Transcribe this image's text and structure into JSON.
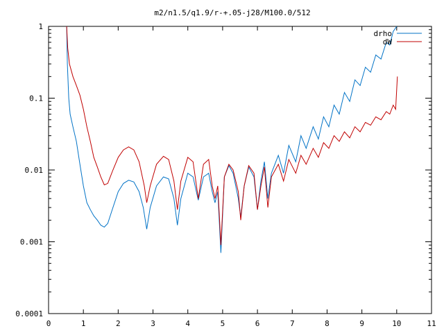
{
  "chart_data": {
    "type": "line",
    "title": "m2/n1.5/q1.9/r-+.05-j28/M100.0/512",
    "xlabel": "",
    "ylabel": "",
    "xlim": [
      0,
      11
    ],
    "ylim": [
      0.0001,
      1
    ],
    "yscale": "log",
    "grid": false,
    "legend_position": "top-right",
    "x_ticks": [
      {
        "v": 0,
        "label": "0"
      },
      {
        "v": 1,
        "label": "1"
      },
      {
        "v": 2,
        "label": "2"
      },
      {
        "v": 3,
        "label": "3"
      },
      {
        "v": 4,
        "label": "4"
      },
      {
        "v": 5,
        "label": "5"
      },
      {
        "v": 6,
        "label": "6"
      },
      {
        "v": 7,
        "label": "7"
      },
      {
        "v": 8,
        "label": "8"
      },
      {
        "v": 9,
        "label": "9"
      },
      {
        "v": 10,
        "label": "10"
      },
      {
        "v": 11,
        "label": "11"
      }
    ],
    "y_ticks": [
      {
        "v": 0.0001,
        "label": "0.0001"
      },
      {
        "v": 0.001,
        "label": "0.001"
      },
      {
        "v": 0.01,
        "label": "0.01"
      },
      {
        "v": 0.1,
        "label": "0.1"
      },
      {
        "v": 1,
        "label": "1"
      }
    ],
    "series": [
      {
        "name": "drho",
        "color": "#0072c6",
        "points": [
          [
            0.52,
            1.0
          ],
          [
            0.54,
            0.3
          ],
          [
            0.58,
            0.1
          ],
          [
            0.62,
            0.06
          ],
          [
            0.7,
            0.04
          ],
          [
            0.8,
            0.025
          ],
          [
            0.9,
            0.012
          ],
          [
            1.0,
            0.006
          ],
          [
            1.1,
            0.0035
          ],
          [
            1.2,
            0.0028
          ],
          [
            1.3,
            0.0023
          ],
          [
            1.4,
            0.002
          ],
          [
            1.5,
            0.0017
          ],
          [
            1.6,
            0.0016
          ],
          [
            1.7,
            0.0018
          ],
          [
            1.85,
            0.003
          ],
          [
            2.0,
            0.005
          ],
          [
            2.15,
            0.0065
          ],
          [
            2.3,
            0.0072
          ],
          [
            2.45,
            0.0068
          ],
          [
            2.6,
            0.005
          ],
          [
            2.72,
            0.003
          ],
          [
            2.82,
            0.0015
          ],
          [
            2.92,
            0.003
          ],
          [
            3.1,
            0.006
          ],
          [
            3.3,
            0.008
          ],
          [
            3.45,
            0.0075
          ],
          [
            3.6,
            0.004
          ],
          [
            3.7,
            0.0017
          ],
          [
            3.8,
            0.004
          ],
          [
            4.0,
            0.009
          ],
          [
            4.15,
            0.008
          ],
          [
            4.3,
            0.0038
          ],
          [
            4.45,
            0.008
          ],
          [
            4.6,
            0.009
          ],
          [
            4.7,
            0.005
          ],
          [
            4.78,
            0.0035
          ],
          [
            4.86,
            0.005
          ],
          [
            4.95,
            0.0007
          ],
          [
            5.05,
            0.008
          ],
          [
            5.18,
            0.0115
          ],
          [
            5.3,
            0.009
          ],
          [
            5.45,
            0.004
          ],
          [
            5.52,
            0.0022
          ],
          [
            5.62,
            0.006
          ],
          [
            5.75,
            0.011
          ],
          [
            5.9,
            0.008
          ],
          [
            6.0,
            0.0028
          ],
          [
            6.1,
            0.007
          ],
          [
            6.2,
            0.013
          ],
          [
            6.3,
            0.004
          ],
          [
            6.4,
            0.009
          ],
          [
            6.6,
            0.016
          ],
          [
            6.75,
            0.009
          ],
          [
            6.9,
            0.022
          ],
          [
            7.1,
            0.013
          ],
          [
            7.25,
            0.03
          ],
          [
            7.4,
            0.02
          ],
          [
            7.6,
            0.04
          ],
          [
            7.75,
            0.027
          ],
          [
            7.9,
            0.055
          ],
          [
            8.05,
            0.04
          ],
          [
            8.2,
            0.08
          ],
          [
            8.35,
            0.06
          ],
          [
            8.5,
            0.12
          ],
          [
            8.65,
            0.09
          ],
          [
            8.8,
            0.18
          ],
          [
            8.95,
            0.15
          ],
          [
            9.1,
            0.27
          ],
          [
            9.25,
            0.23
          ],
          [
            9.4,
            0.4
          ],
          [
            9.55,
            0.35
          ],
          [
            9.7,
            0.6
          ],
          [
            9.8,
            0.55
          ],
          [
            9.9,
            0.85
          ],
          [
            10.0,
            1.0
          ]
        ]
      },
      {
        "name": "dW",
        "color": "#c00000",
        "points": [
          [
            0.52,
            1.0
          ],
          [
            0.55,
            0.5
          ],
          [
            0.6,
            0.3
          ],
          [
            0.7,
            0.2
          ],
          [
            0.8,
            0.15
          ],
          [
            0.9,
            0.11
          ],
          [
            1.0,
            0.07
          ],
          [
            1.1,
            0.04
          ],
          [
            1.2,
            0.025
          ],
          [
            1.3,
            0.015
          ],
          [
            1.4,
            0.011
          ],
          [
            1.5,
            0.008
          ],
          [
            1.6,
            0.0062
          ],
          [
            1.7,
            0.0065
          ],
          [
            1.85,
            0.01
          ],
          [
            2.0,
            0.015
          ],
          [
            2.15,
            0.019
          ],
          [
            2.3,
            0.021
          ],
          [
            2.45,
            0.019
          ],
          [
            2.6,
            0.013
          ],
          [
            2.75,
            0.006
          ],
          [
            2.82,
            0.0035
          ],
          [
            2.92,
            0.006
          ],
          [
            3.1,
            0.012
          ],
          [
            3.3,
            0.0155
          ],
          [
            3.45,
            0.014
          ],
          [
            3.6,
            0.007
          ],
          [
            3.7,
            0.0028
          ],
          [
            3.8,
            0.007
          ],
          [
            4.0,
            0.015
          ],
          [
            4.15,
            0.013
          ],
          [
            4.3,
            0.004
          ],
          [
            4.45,
            0.012
          ],
          [
            4.6,
            0.014
          ],
          [
            4.7,
            0.006
          ],
          [
            4.78,
            0.004
          ],
          [
            4.86,
            0.006
          ],
          [
            4.95,
            0.0009
          ],
          [
            5.05,
            0.008
          ],
          [
            5.18,
            0.012
          ],
          [
            5.3,
            0.01
          ],
          [
            5.45,
            0.005
          ],
          [
            5.52,
            0.002
          ],
          [
            5.62,
            0.006
          ],
          [
            5.75,
            0.0115
          ],
          [
            5.9,
            0.009
          ],
          [
            6.0,
            0.0028
          ],
          [
            6.1,
            0.006
          ],
          [
            6.2,
            0.011
          ],
          [
            6.3,
            0.003
          ],
          [
            6.4,
            0.008
          ],
          [
            6.6,
            0.012
          ],
          [
            6.75,
            0.007
          ],
          [
            6.9,
            0.014
          ],
          [
            7.1,
            0.009
          ],
          [
            7.25,
            0.016
          ],
          [
            7.4,
            0.012
          ],
          [
            7.6,
            0.02
          ],
          [
            7.75,
            0.015
          ],
          [
            7.9,
            0.024
          ],
          [
            8.05,
            0.02
          ],
          [
            8.2,
            0.03
          ],
          [
            8.35,
            0.025
          ],
          [
            8.5,
            0.034
          ],
          [
            8.65,
            0.028
          ],
          [
            8.8,
            0.04
          ],
          [
            8.95,
            0.034
          ],
          [
            9.1,
            0.046
          ],
          [
            9.25,
            0.042
          ],
          [
            9.4,
            0.055
          ],
          [
            9.55,
            0.05
          ],
          [
            9.7,
            0.065
          ],
          [
            9.8,
            0.06
          ],
          [
            9.9,
            0.08
          ],
          [
            9.97,
            0.07
          ],
          [
            10.02,
            0.2
          ]
        ]
      }
    ]
  }
}
